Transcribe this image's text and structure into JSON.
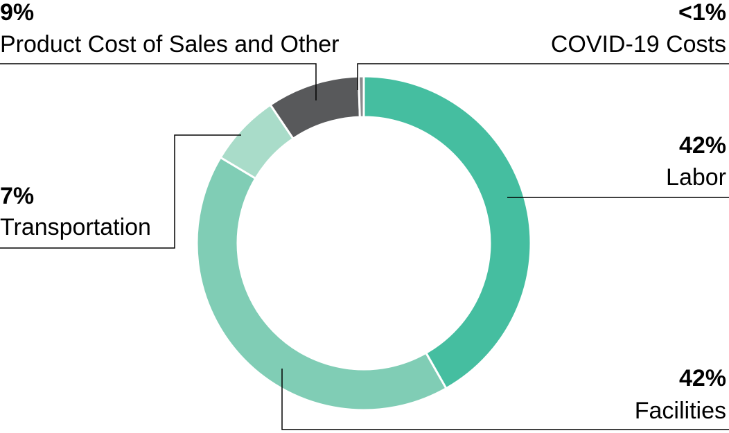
{
  "chart_data": {
    "type": "pie",
    "categories": [
      "Labor",
      "Facilities",
      "Transportation",
      "Product Cost of Sales and Other",
      "COVID-19 Costs"
    ],
    "values": [
      42,
      42,
      7,
      9,
      0.5
    ],
    "value_labels": [
      "42%",
      "42%",
      "7%",
      "9%",
      "<1%"
    ],
    "colors": [
      "#45bea0",
      "#80cdb5",
      "#a9dcc9",
      "#58595b",
      "#8a8b8d"
    ]
  }
}
